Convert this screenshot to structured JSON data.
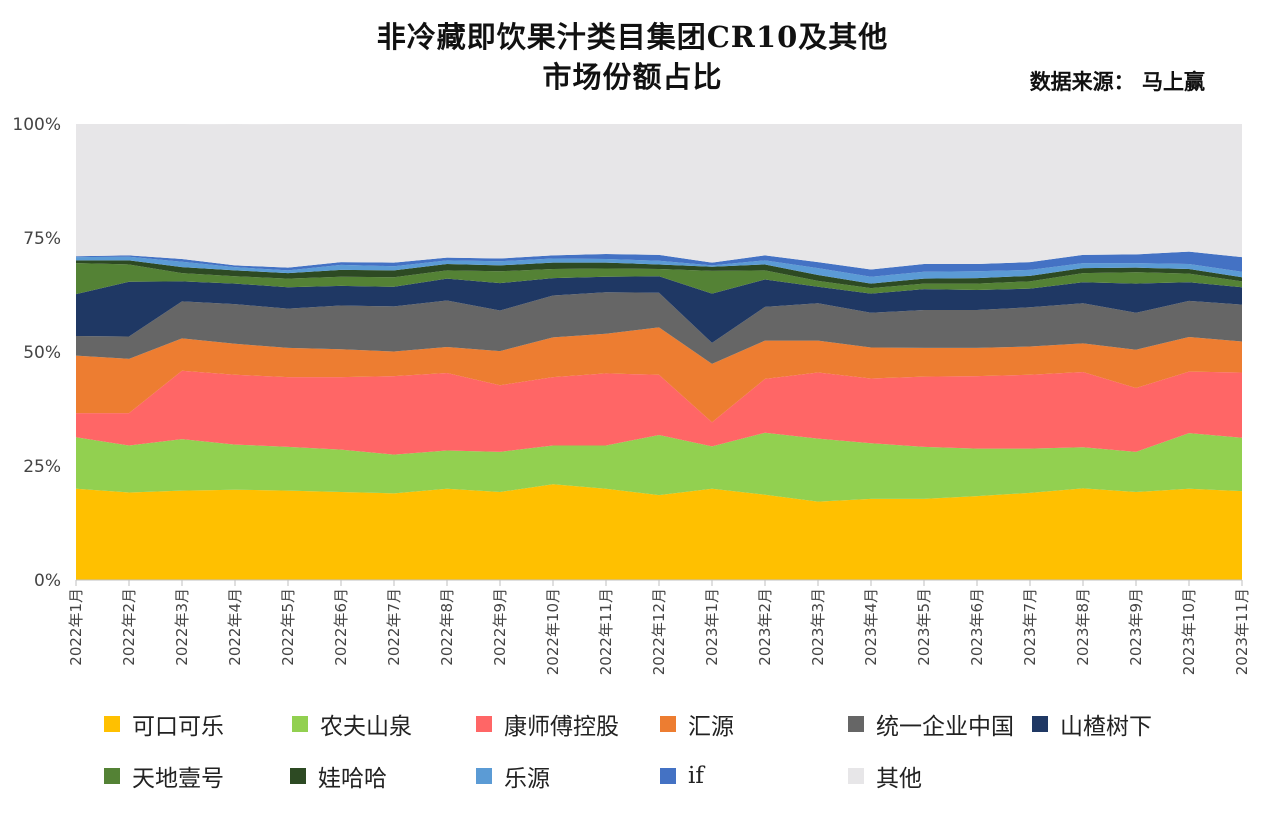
{
  "title": {
    "line1": "非冷藏即饮果汁类目集团CR10及其他",
    "line2": "市场份额占比"
  },
  "source": "数据来源： 马上赢",
  "chart_data": {
    "type": "area",
    "stacked": true,
    "ylim": [
      0,
      100
    ],
    "y_ticks": [
      "0%",
      "25%",
      "50%",
      "75%",
      "100%"
    ],
    "grid": false,
    "legend_position": "bottom",
    "categories": [
      "2022年1月",
      "2022年2月",
      "2022年3月",
      "2022年4月",
      "2022年5月",
      "2022年6月",
      "2022年7月",
      "2022年8月",
      "2022年9月",
      "2022年10月",
      "2022年11月",
      "2022年12月",
      "2023年1月",
      "2023年2月",
      "2023年3月",
      "2023年4月",
      "2023年5月",
      "2023年6月",
      "2023年7月",
      "2023年8月",
      "2023年9月",
      "2023年10月",
      "2023年11月"
    ],
    "series": [
      {
        "name": "可口可乐",
        "color": "#FFC000",
        "values": [
          20,
          19.2,
          19.6,
          19.8,
          19.6,
          19.3,
          19,
          20,
          19.3,
          21,
          20,
          18.6,
          20,
          18.7,
          17.2,
          17.8,
          17.8,
          18.4,
          19.1,
          20.1,
          19.3,
          20,
          19.5
        ]
      },
      {
        "name": "农夫山泉",
        "color": "#92D050",
        "values": [
          11.3,
          10.3,
          11.3,
          9.9,
          9.6,
          9.3,
          8.5,
          8.4,
          8.8,
          8.5,
          9.5,
          13.2,
          9.3,
          13.6,
          13.8,
          12.2,
          11.4,
          10.4,
          9.7,
          9,
          8.8,
          12.2,
          11.7
        ]
      },
      {
        "name": "康师傅控股",
        "color": "#FF6666",
        "values": [
          5.3,
          7.1,
          15,
          15.3,
          15.3,
          15.9,
          17.2,
          17,
          14.6,
          15,
          15.8,
          13.2,
          5.3,
          11.8,
          14.5,
          14.2,
          15.4,
          15.9,
          16.2,
          16.5,
          14,
          13.5,
          14.3
        ]
      },
      {
        "name": "汇源",
        "color": "#ED7D31",
        "values": [
          12.6,
          11.9,
          7.1,
          6.8,
          6.4,
          6.1,
          5.4,
          5.7,
          7.5,
          8.7,
          8.7,
          10.4,
          12.8,
          8.4,
          7,
          6.8,
          6.3,
          6.2,
          6.2,
          6.3,
          8.4,
          7.6,
          6.8
        ]
      },
      {
        "name": "统一企业中国",
        "color": "#666666",
        "values": [
          4.3,
          4.9,
          8.1,
          8.7,
          8.6,
          9.6,
          9.9,
          10.2,
          8.9,
          9.2,
          9.1,
          7.6,
          4.6,
          7.4,
          8.2,
          7.6,
          8.3,
          8.3,
          8.6,
          8.8,
          8.1,
          7.9,
          8.1
        ]
      },
      {
        "name": "山楂树下",
        "color": "#1F3864",
        "values": [
          9.2,
          12,
          4.4,
          4.5,
          4.7,
          4.3,
          4.3,
          4.8,
          6,
          3.8,
          3.4,
          3.6,
          10.8,
          6,
          3.6,
          4.2,
          4.6,
          4.4,
          4.1,
          4.6,
          6.4,
          4.1,
          3.8
        ]
      },
      {
        "name": "天地壹号",
        "color": "#548235",
        "values": [
          6.8,
          3.8,
          1.8,
          1.6,
          1.9,
          2,
          2.1,
          1.8,
          2.6,
          2,
          1.8,
          1.6,
          5,
          2,
          1.3,
          1.2,
          1.2,
          1.4,
          1.6,
          2,
          2.5,
          1.9,
          1.3
        ]
      },
      {
        "name": "娃哈哈",
        "color": "#2D4A23",
        "values": [
          0.6,
          0.9,
          1.3,
          1.3,
          1.2,
          1.5,
          1.5,
          1.4,
          1.3,
          1.4,
          1.3,
          1,
          0.9,
          1.3,
          1.3,
          1,
          1.1,
          1.2,
          1.2,
          1.1,
          1,
          1,
          0.9
        ]
      },
      {
        "name": "乐源",
        "color": "#5B9BD5",
        "values": [
          0.7,
          0.8,
          1.2,
          0.7,
          0.6,
          1.1,
          0.9,
          0.8,
          0.9,
          0.9,
          0.8,
          0.8,
          0.3,
          0.9,
          1.5,
          1.5,
          1.5,
          1.5,
          1.3,
          1.1,
          1,
          1.1,
          1.2
        ]
      },
      {
        "name": "if",
        "color": "#4472C4",
        "values": [
          0.2,
          0.3,
          0.6,
          0.4,
          0.6,
          0.6,
          0.8,
          0.6,
          0.6,
          0.7,
          1.1,
          1.3,
          0.6,
          1.1,
          1.3,
          1.6,
          1.7,
          1.6,
          1.7,
          1.8,
          1.9,
          2.7,
          3.2
        ]
      },
      {
        "name": "其他",
        "color": "#E7E6E8",
        "values": [
          29,
          28.8,
          29.6,
          30.9,
          31.5,
          30.3,
          30.4,
          29.3,
          29.5,
          28.8,
          28.5,
          29.3,
          30.4,
          28.8,
          30.3,
          31.9,
          30.7,
          30.7,
          30.3,
          29.7,
          28.6,
          28,
          29.3
        ]
      }
    ]
  }
}
